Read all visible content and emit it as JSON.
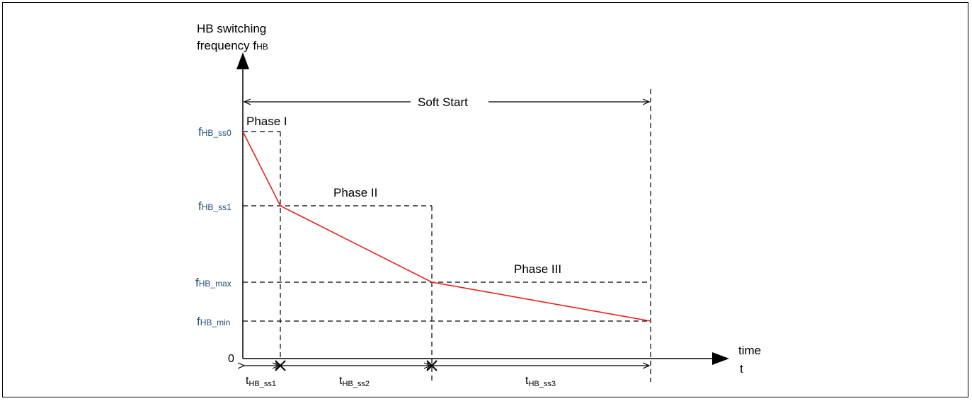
{
  "y_axis": {
    "title_line1": "HB switching",
    "title_line2_main": "frequency f",
    "title_line2_sub": "HB"
  },
  "x_axis": {
    "label_line1": "time",
    "label_line2": "t"
  },
  "origin_label": "0",
  "frequency_levels": [
    {
      "main": "f",
      "sub": "HB_ss0"
    },
    {
      "main": "f",
      "sub": "HB_ss1"
    },
    {
      "main": "f",
      "sub": "HB_max"
    },
    {
      "main": "f",
      "sub": "HB_min"
    }
  ],
  "soft_start_label": "Soft Start",
  "phases": [
    "Phase I",
    "Phase II",
    "Phase III"
  ],
  "durations": [
    {
      "main": "t",
      "sub": "HB_ss1"
    },
    {
      "main": "t",
      "sub": "HB_ss2"
    },
    {
      "main": "t",
      "sub": "HB_ss3"
    }
  ],
  "colors": {
    "curve": "#e8211c",
    "label_blue": "#1f4e79",
    "lines": "#000000"
  }
}
